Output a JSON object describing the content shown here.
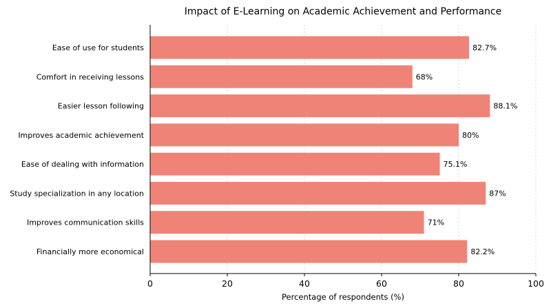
{
  "chart_data": {
    "type": "bar",
    "orientation": "horizontal",
    "title": "Impact of E-Learning on Academic Achievement and Performance",
    "xlabel": "Percentage of respondents (%)",
    "ylabel": "",
    "xlim": [
      0,
      100
    ],
    "xticks": [
      0,
      20,
      40,
      60,
      80,
      100
    ],
    "grid": "x-dashed",
    "bar_color": "#F08377",
    "categories": [
      "Ease of use for students",
      "Comfort in receiving lessons",
      "Easier lesson following",
      "Improves academic achievement",
      "Ease of dealing with information",
      "Study specialization in any location",
      "Improves communication skills",
      "Financially more economical"
    ],
    "values": [
      82.7,
      68,
      88.1,
      80,
      75.1,
      87,
      71,
      82.2
    ],
    "value_labels": [
      "82.7%",
      "68%",
      "88.1%",
      "80%",
      "75.1%",
      "87%",
      "71%",
      "82.2%"
    ]
  }
}
